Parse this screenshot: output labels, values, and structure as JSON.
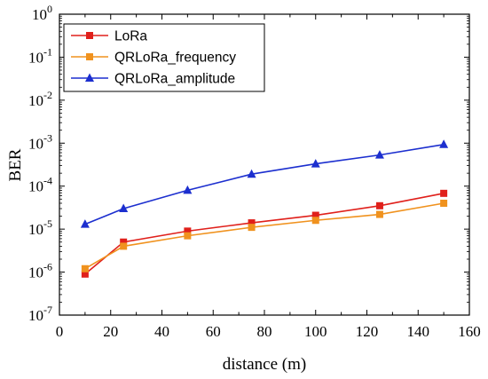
{
  "chart_data": {
    "type": "line",
    "xlabel": "distance (m)",
    "ylabel": "BER",
    "xlim": [
      0,
      160
    ],
    "x_ticks": [
      "0",
      "20",
      "40",
      "60",
      "80",
      "100",
      "120",
      "140",
      "160"
    ],
    "ylim_log10": [
      -7,
      0
    ],
    "y_scale": "log",
    "y_tick_exponents": [
      "0",
      "-1",
      "-2",
      "-3",
      "-4",
      "-5",
      "-6",
      "-7"
    ],
    "y_tick_base": "10",
    "grid": false,
    "legend_position": "top-left",
    "series": [
      {
        "name": "LoRa",
        "color": "#e0201b",
        "marker": "square",
        "x": [
          10,
          25,
          50,
          75,
          100,
          125,
          150
        ],
        "y": [
          9e-07,
          5e-06,
          9e-06,
          1.4e-05,
          2.1e-05,
          3.5e-05,
          6.8e-05
        ]
      },
      {
        "name": "QRLoRa_frequency",
        "color": "#f0921e",
        "marker": "square",
        "x": [
          10,
          25,
          50,
          75,
          100,
          125,
          150
        ],
        "y": [
          1.2e-06,
          4e-06,
          7e-06,
          1.1e-05,
          1.6e-05,
          2.2e-05,
          4e-05
        ]
      },
      {
        "name": "QRLoRa_amplitude",
        "color": "#1c2fcf",
        "marker": "triangle",
        "x": [
          10,
          25,
          50,
          75,
          100,
          125,
          150
        ],
        "y": [
          1.3e-05,
          3e-05,
          8e-05,
          0.00019,
          0.00033,
          0.00053,
          0.00093
        ]
      }
    ]
  }
}
